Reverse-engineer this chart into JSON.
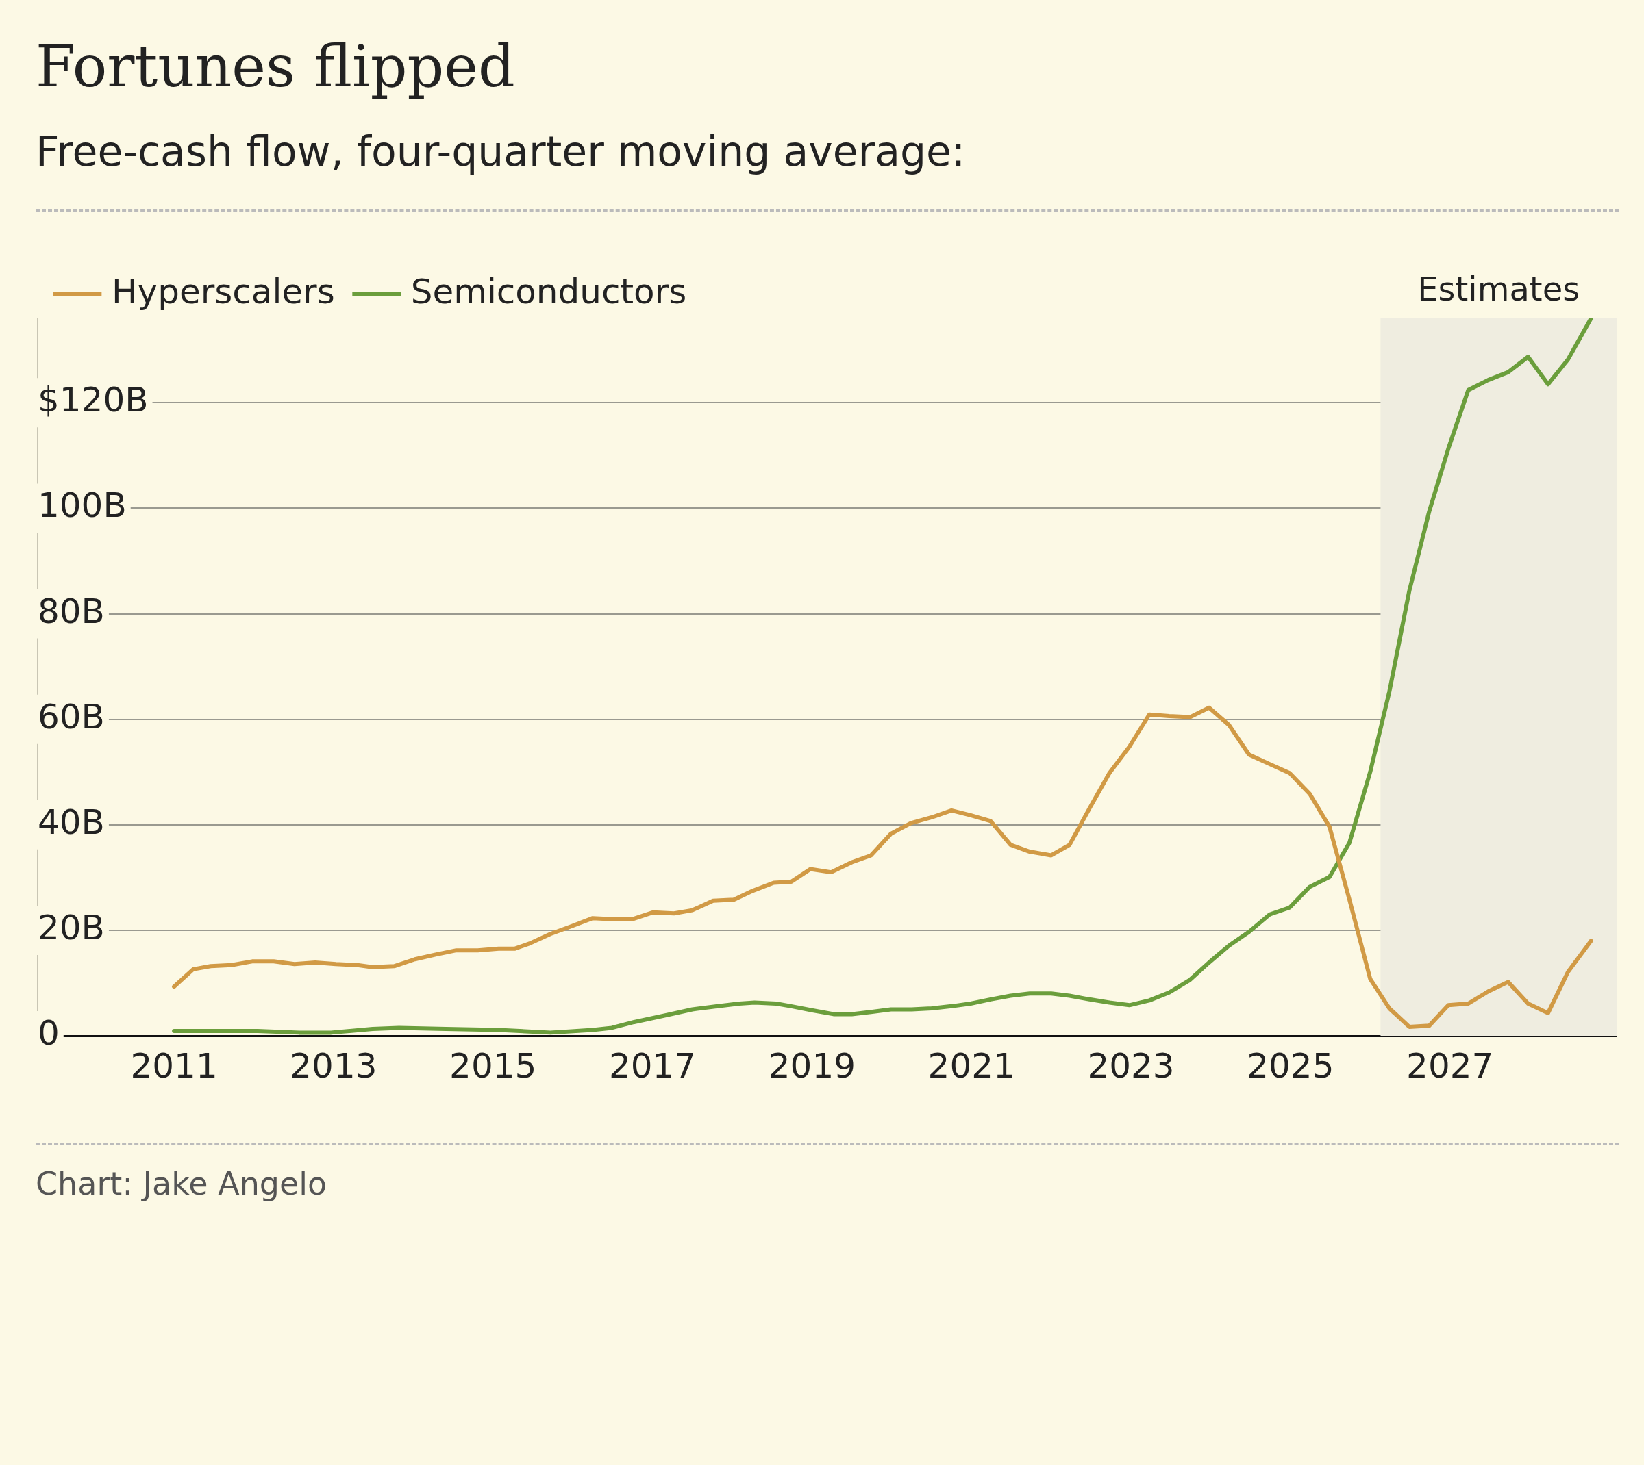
{
  "chart_data": {
    "type": "line",
    "title": "Fortunes flipped",
    "subtitle": "Free-cash flow, four-quarter moving average:",
    "legend": "top left",
    "grid": "y",
    "xlim": [
      2009.29,
      2029.09
    ],
    "xticks": [
      2011,
      2013,
      2015,
      2017,
      2019,
      2021,
      2023,
      2025,
      2027
    ],
    "ylim": [
      0,
      136
    ],
    "yticks": [
      {
        "value": 0,
        "label": "0"
      },
      {
        "value": 20,
        "label": "20B"
      },
      {
        "value": 40,
        "label": "40B"
      },
      {
        "value": 60,
        "label": "60B"
      },
      {
        "value": 80,
        "label": "80B"
      },
      {
        "value": 100,
        "label": "100B"
      },
      {
        "value": 120,
        "label": "$120B"
      }
    ],
    "bands": [
      {
        "axis": "x",
        "from": 2026.13,
        "to": 2029.09,
        "label": "Estimates",
        "color": "#efede0"
      }
    ],
    "annotations": [
      "Chart: Jake Angelo"
    ],
    "series": [
      {
        "name": "Hyperscalers",
        "color": "#d19a45",
        "x": [
          2011.0,
          2011.24,
          2011.46,
          2011.72,
          2011.98,
          2012.25,
          2012.51,
          2012.77,
          2013.03,
          2013.3,
          2013.49,
          2013.76,
          2014.02,
          2014.28,
          2014.54,
          2014.81,
          2015.07,
          2015.27,
          2015.46,
          2015.72,
          2015.99,
          2016.25,
          2016.51,
          2016.75,
          2017.01,
          2017.27,
          2017.5,
          2017.76,
          2018.02,
          2018.26,
          2018.52,
          2018.74,
          2018.98,
          2019.24,
          2019.5,
          2019.74,
          2019.99,
          2020.24,
          2020.5,
          2020.75,
          2020.99,
          2021.24,
          2021.49,
          2021.73,
          2022.0,
          2022.23,
          2022.48,
          2022.73,
          2022.98,
          2023.23,
          2023.48,
          2023.74,
          2023.98,
          2024.23,
          2024.48,
          2024.74,
          2024.99,
          2025.24,
          2025.49,
          2025.74,
          2026.0,
          2026.24,
          2026.49,
          2026.74,
          2026.98,
          2027.23,
          2027.48,
          2027.73,
          2027.98,
          2028.23,
          2028.48,
          2028.77
        ],
        "values": [
          9.3,
          12.6,
          13.2,
          13.4,
          14.1,
          14.1,
          13.6,
          13.9,
          13.6,
          13.4,
          13.0,
          13.2,
          14.5,
          15.4,
          16.2,
          16.2,
          16.5,
          16.5,
          17.5,
          19.3,
          20.8,
          22.3,
          22.1,
          22.1,
          23.4,
          23.2,
          23.8,
          25.6,
          25.8,
          27.5,
          29.0,
          29.2,
          31.6,
          31.0,
          32.9,
          34.2,
          38.3,
          40.3,
          41.4,
          42.7,
          41.8,
          40.7,
          36.2,
          34.9,
          34.2,
          36.2,
          43.1,
          49.8,
          54.8,
          60.9,
          60.6,
          60.4,
          62.2,
          58.9,
          53.3,
          51.5,
          49.8,
          45.9,
          39.6,
          25.8,
          10.8,
          5.2,
          1.7,
          1.9,
          5.8,
          6.1,
          8.4,
          10.2,
          6.1,
          4.3,
          12.1,
          18.0
        ]
      },
      {
        "name": "Semiconductors",
        "color": "#6b9e3c",
        "x": [
          2011.0,
          2011.52,
          2012.05,
          2012.57,
          2012.97,
          2013.49,
          2013.82,
          2014.41,
          2015.07,
          2015.72,
          2016.25,
          2016.49,
          2016.77,
          2017.17,
          2017.5,
          2017.82,
          2018.09,
          2018.28,
          2018.55,
          2018.74,
          2019.01,
          2019.27,
          2019.5,
          2019.74,
          2019.99,
          2020.25,
          2020.5,
          2020.75,
          2020.99,
          2021.24,
          2021.49,
          2021.73,
          2022.0,
          2022.23,
          2022.48,
          2022.73,
          2022.98,
          2023.23,
          2023.48,
          2023.74,
          2023.98,
          2024.23,
          2024.48,
          2024.74,
          2024.99,
          2025.24,
          2025.49,
          2025.74,
          2026.0,
          2026.24,
          2026.49,
          2026.74,
          2026.98,
          2027.23,
          2027.48,
          2027.73,
          2027.98,
          2028.23,
          2028.48,
          2028.77
        ],
        "values": [
          0.9,
          0.9,
          0.9,
          0.6,
          0.6,
          1.3,
          1.5,
          1.3,
          1.1,
          0.6,
          1.1,
          1.5,
          2.6,
          3.9,
          5.0,
          5.6,
          6.1,
          6.3,
          6.1,
          5.6,
          4.8,
          4.1,
          4.1,
          4.5,
          5.0,
          5.0,
          5.2,
          5.6,
          6.1,
          6.9,
          7.6,
          8.0,
          8.0,
          7.6,
          6.9,
          6.3,
          5.8,
          6.7,
          8.2,
          10.6,
          13.9,
          17.1,
          19.7,
          23.0,
          24.3,
          28.2,
          30.1,
          36.6,
          50.0,
          65.2,
          84.3,
          99.4,
          111.3,
          122.4,
          124.3,
          125.8,
          128.7,
          123.5,
          128.2,
          136.0
        ]
      }
    ]
  }
}
